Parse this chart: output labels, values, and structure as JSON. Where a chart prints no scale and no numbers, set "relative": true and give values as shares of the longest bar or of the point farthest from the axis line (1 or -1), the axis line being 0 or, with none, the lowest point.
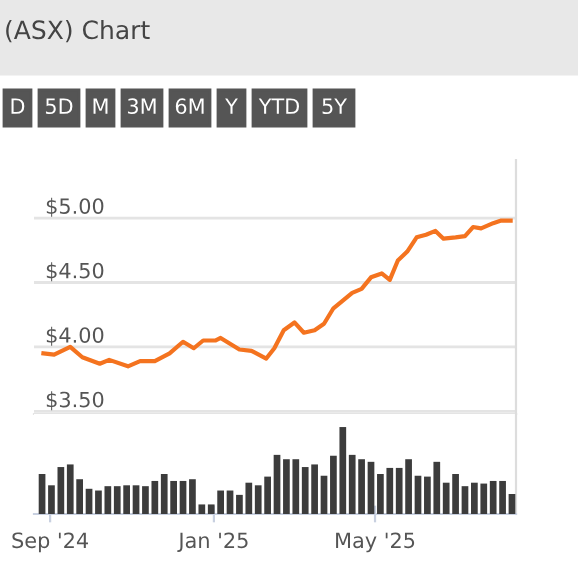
{
  "chart_data": [
    {
      "type": "line",
      "title": "(ASX) Chart",
      "annotations": [
        "D",
        "5D",
        "M",
        "3M",
        "6M",
        "Y",
        "YTD",
        "5Y"
      ],
      "x": [
        "2024-08-27",
        "2024-09-04",
        "2024-09-16",
        "2024-09-25",
        "2024-10-08",
        "2024-10-15",
        "2024-10-29",
        "2024-11-07",
        "2024-11-18",
        "2024-11-29",
        "2024-12-09",
        "2024-12-17",
        "2024-12-24",
        "2025-01-02",
        "2025-01-06",
        "2025-01-20",
        "2025-01-29",
        "2025-02-09",
        "2025-02-15",
        "2025-02-22",
        "2025-03-02",
        "2025-03-09",
        "2025-03-17",
        "2025-03-24",
        "2025-03-31",
        "2025-04-14",
        "2025-04-21",
        "2025-04-28",
        "2025-05-06",
        "2025-05-12",
        "2025-05-18",
        "2025-05-25",
        "2025-06-01",
        "2025-06-08",
        "2025-06-15",
        "2025-06-21",
        "2025-06-30",
        "2025-07-07",
        "2025-07-13",
        "2025-07-19",
        "2025-07-28",
        "2025-08-03",
        "2025-08-10"
      ],
      "series": [
        {
          "color": "#f4731f",
          "values": [
            3.95,
            3.94,
            4.0,
            3.92,
            3.87,
            3.9,
            3.85,
            3.89,
            3.89,
            3.95,
            4.04,
            3.99,
            4.05,
            4.05,
            4.07,
            3.98,
            3.97,
            3.91,
            3.99,
            4.13,
            4.19,
            4.11,
            4.13,
            4.18,
            4.3,
            4.42,
            4.45,
            4.54,
            4.57,
            4.52,
            4.67,
            4.74,
            4.85,
            4.87,
            4.9,
            4.84,
            4.85,
            4.86,
            4.93,
            4.92,
            4.96,
            4.98,
            4.98
          ]
        }
      ],
      "xlim": [
        "2024-08-20",
        "2025-08-14"
      ],
      "ylim": [
        3.48,
        5.45
      ],
      "yticks": [
        {
          "value": 3.5,
          "label": "$3.50"
        },
        {
          "value": 4.0,
          "label": "$4.00"
        },
        {
          "value": 4.5,
          "label": "$4.50"
        },
        {
          "value": 5.0,
          "label": "$5.00"
        }
      ],
      "grid": "y",
      "tick_labels": "y",
      "marker": "none",
      "line_style": "solid",
      "legend": false
    },
    {
      "type": "bar",
      "relative": true,
      "x": [
        "2024-08-26",
        "2024-09-02",
        "2024-09-09",
        "2024-09-16",
        "2024-09-23",
        "2024-09-30",
        "2024-10-07",
        "2024-10-14",
        "2024-10-21",
        "2024-10-28",
        "2024-11-04",
        "2024-11-11",
        "2024-11-18",
        "2024-11-25",
        "2024-12-02",
        "2024-12-09",
        "2024-12-16",
        "2024-12-23",
        "2024-12-30",
        "2025-01-06",
        "2025-01-13",
        "2025-01-20",
        "2025-01-27",
        "2025-02-03",
        "2025-02-10",
        "2025-02-17",
        "2025-02-24",
        "2025-03-03",
        "2025-03-10",
        "2025-03-17",
        "2025-03-24",
        "2025-03-31",
        "2025-04-07",
        "2025-04-14",
        "2025-04-21",
        "2025-04-28",
        "2025-05-05",
        "2025-05-12",
        "2025-05-19",
        "2025-05-26",
        "2025-06-02",
        "2025-06-09",
        "2025-06-16",
        "2025-06-23",
        "2025-06-30",
        "2025-07-07",
        "2025-07-14",
        "2025-07-21",
        "2025-07-28",
        "2025-08-04",
        "2025-08-11"
      ],
      "series": [
        {
          "color": "#3c3c3c",
          "values": [
            0.46,
            0.33,
            0.54,
            0.57,
            0.4,
            0.29,
            0.27,
            0.32,
            0.32,
            0.33,
            0.33,
            0.32,
            0.38,
            0.46,
            0.38,
            0.38,
            0.4,
            0.11,
            0.11,
            0.27,
            0.27,
            0.22,
            0.36,
            0.33,
            0.43,
            0.68,
            0.63,
            0.63,
            0.54,
            0.57,
            0.44,
            0.67,
            1,
            0.68,
            0.63,
            0.6,
            0.46,
            0.53,
            0.53,
            0.63,
            0.44,
            0.43,
            0.6,
            0.36,
            0.46,
            0.32,
            0.36,
            0.35,
            0.38,
            0.38,
            0.23
          ]
        }
      ],
      "xlim": [
        "2024-08-20",
        "2025-08-14"
      ],
      "xticks": [
        {
          "value": "2024-09-01",
          "label": "Sep '24"
        },
        {
          "value": "2025-01-01",
          "label": "Jan '25"
        },
        {
          "value": "2025-05-01",
          "label": "May '25"
        }
      ],
      "grid": false,
      "legend": false
    }
  ]
}
